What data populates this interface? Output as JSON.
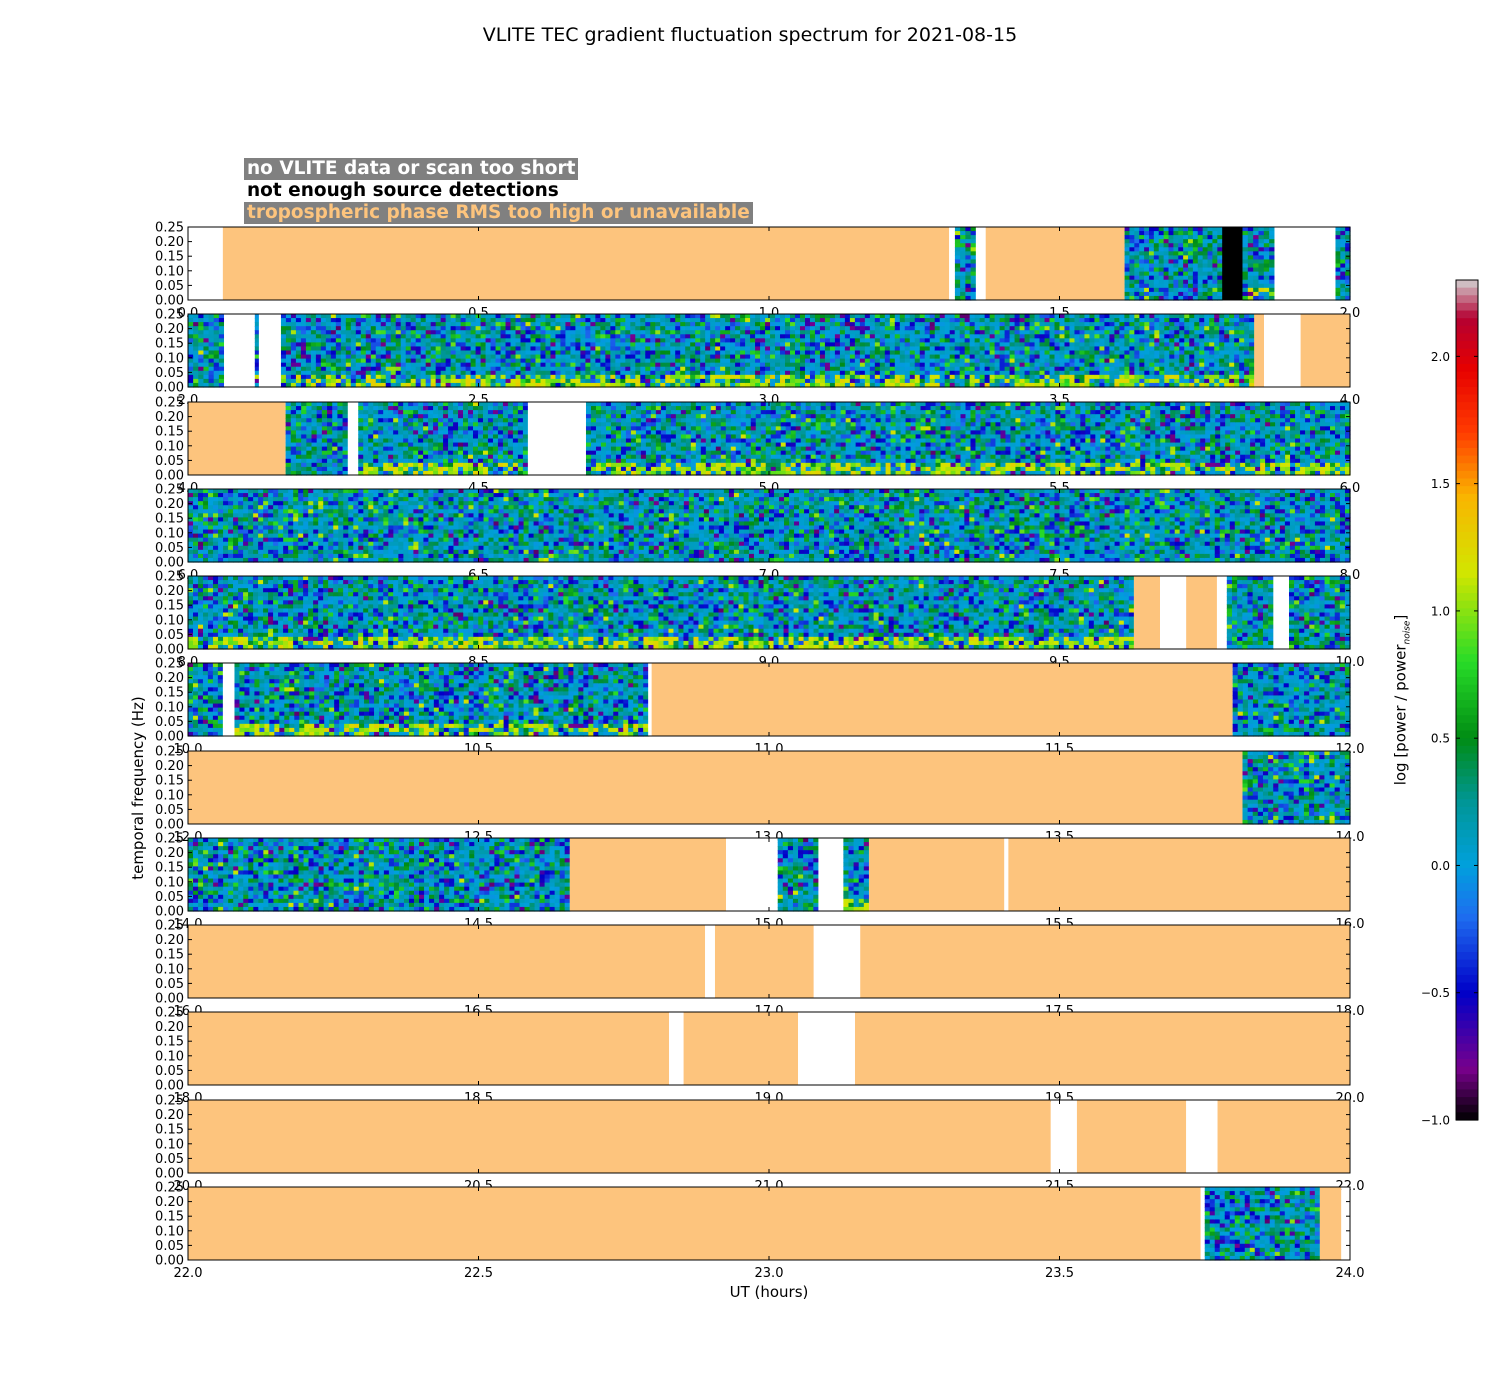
{
  "chart_data": {
    "type": "heatmap",
    "title": "VLITE TEC gradient fluctuation spectrum for 2021-08-15",
    "xlabel": "UT (hours)",
    "ylabel": "temporal frequency (Hz)",
    "ylim": [
      0,
      0.25
    ],
    "yticks": [
      "0.00",
      "0.05",
      "0.10",
      "0.15",
      "0.20",
      "0.25"
    ],
    "colorbar": {
      "label": "log [power / power",
      "label_sub": "noise",
      "label_end": "]",
      "range": [
        -1.0,
        2.3
      ],
      "ticks": [
        "−1.0",
        "−0.5",
        "0.0",
        "0.5",
        "1.0",
        "1.5",
        "2.0"
      ],
      "tick_values": [
        -1.0,
        -0.5,
        0.0,
        0.5,
        1.0,
        1.5,
        2.0
      ]
    },
    "legend": [
      {
        "text": "no VLITE data or scan too short",
        "color": "#ffffff"
      },
      {
        "text": "not enough source detections",
        "color": "#000000"
      },
      {
        "text": "tropospheric phase RMS too high or unavailable",
        "color": "#fdc47d"
      }
    ],
    "colors": {
      "no_data": "#ffffff",
      "few_detections": "#000000",
      "tropo_bad": "#fdc47d"
    },
    "panels": [
      {
        "range": [
          0,
          2
        ],
        "xticks": [
          "0.0",
          "0.5",
          "1.0",
          "1.5",
          "2.0"
        ],
        "segments": [
          [
            "white",
            0,
            0.06
          ],
          [
            "orange",
            0.06,
            1.31
          ],
          [
            "white",
            1.31,
            1.32
          ],
          [
            "data",
            1.32,
            1.356
          ],
          [
            "white",
            1.356,
            1.373
          ],
          [
            "orange",
            1.373,
            1.612
          ],
          [
            "data",
            1.612,
            1.78
          ],
          [
            "black",
            1.78,
            1.815
          ],
          [
            "data",
            1.815,
            1.87
          ],
          [
            "white",
            1.87,
            1.975
          ],
          [
            "data",
            1.975,
            2.0
          ]
        ]
      },
      {
        "range": [
          2,
          4
        ],
        "xticks": [
          "2.0",
          "2.5",
          "3.0",
          "3.5",
          "4.0"
        ],
        "segments": [
          [
            "data",
            2,
            2.062
          ],
          [
            "white",
            2.062,
            2.115
          ],
          [
            "data",
            2.115,
            2.122
          ],
          [
            "white",
            2.122,
            2.16
          ],
          [
            "data",
            2.16,
            3.835
          ],
          [
            "orange",
            3.835,
            3.852
          ],
          [
            "white",
            3.852,
            3.915
          ],
          [
            "orange",
            3.915,
            4.0
          ]
        ]
      },
      {
        "range": [
          4,
          6
        ],
        "xticks": [
          "4.0",
          "4.5",
          "5.0",
          "5.5",
          "6.0"
        ],
        "segments": [
          [
            "orange",
            4,
            4.168
          ],
          [
            "data",
            4.168,
            4.275
          ],
          [
            "white",
            4.275,
            4.293
          ],
          [
            "data",
            4.293,
            4.585
          ],
          [
            "white",
            4.585,
            4.685
          ],
          [
            "data",
            4.685,
            6.0
          ]
        ]
      },
      {
        "range": [
          6,
          8
        ],
        "xticks": [
          "6.0",
          "6.5",
          "7.0",
          "7.5",
          "8.0"
        ],
        "segments": [
          [
            "data",
            6,
            8
          ]
        ]
      },
      {
        "range": [
          8,
          10
        ],
        "xticks": [
          "8.0",
          "8.5",
          "9.0",
          "9.5",
          "10.0"
        ],
        "segments": [
          [
            "data",
            8,
            9.628
          ],
          [
            "orange",
            9.628,
            9.673
          ],
          [
            "white",
            9.673,
            9.718
          ],
          [
            "orange",
            9.718,
            9.771
          ],
          [
            "white",
            9.771,
            9.788
          ],
          [
            "data",
            9.788,
            9.868
          ],
          [
            "white",
            9.868,
            9.895
          ],
          [
            "data",
            9.895,
            10.0
          ]
        ]
      },
      {
        "range": [
          10,
          12
        ],
        "xticks": [
          "10.0",
          "10.5",
          "11.0",
          "11.5",
          "12.0"
        ],
        "segments": [
          [
            "data",
            10,
            10.06
          ],
          [
            "white",
            10.06,
            10.08
          ],
          [
            "data",
            10.08,
            10.792
          ],
          [
            "white",
            10.792,
            10.798
          ],
          [
            "orange",
            10.798,
            11.798
          ],
          [
            "data",
            11.798,
            12.0
          ]
        ]
      },
      {
        "range": [
          12,
          14
        ],
        "xticks": [
          "12.0",
          "12.5",
          "13.0",
          "13.5",
          "14.0"
        ],
        "segments": [
          [
            "orange",
            12,
            13.815
          ],
          [
            "data",
            13.815,
            14.0
          ]
        ]
      },
      {
        "range": [
          14,
          16
        ],
        "xticks": [
          "14.0",
          "14.5",
          "15.0",
          "15.5",
          "16.0"
        ],
        "segments": [
          [
            "data",
            14,
            14.657
          ],
          [
            "orange",
            14.657,
            14.926
          ],
          [
            "white",
            14.926,
            15.015
          ],
          [
            "data",
            15.015,
            15.085
          ],
          [
            "white",
            15.085,
            15.128
          ],
          [
            "data",
            15.128,
            15.172
          ],
          [
            "orange",
            15.172,
            15.405
          ],
          [
            "white",
            15.405,
            15.412
          ],
          [
            "orange",
            15.412,
            16.0
          ]
        ]
      },
      {
        "range": [
          16,
          18
        ],
        "xticks": [
          "16.0",
          "16.5",
          "17.0",
          "17.5",
          "18.0"
        ],
        "segments": [
          [
            "orange",
            16,
            16.89
          ],
          [
            "white",
            16.89,
            16.907
          ],
          [
            "orange",
            16.907,
            17.077
          ],
          [
            "white",
            17.077,
            17.157
          ],
          [
            "orange",
            17.157,
            18.0
          ]
        ]
      },
      {
        "range": [
          18,
          20
        ],
        "xticks": [
          "18.0",
          "18.5",
          "19.0",
          "19.5",
          "20.0"
        ],
        "segments": [
          [
            "orange",
            18,
            18.828
          ],
          [
            "white",
            18.828,
            18.853
          ],
          [
            "orange",
            18.853,
            19.05
          ],
          [
            "white",
            19.05,
            19.148
          ],
          [
            "orange",
            19.148,
            20.0
          ]
        ]
      },
      {
        "range": [
          20,
          22
        ],
        "xticks": [
          "20.0",
          "20.5",
          "21.0",
          "21.5",
          "22.0"
        ],
        "segments": [
          [
            "orange",
            20,
            21.485
          ],
          [
            "white",
            21.485,
            21.53
          ],
          [
            "orange",
            21.53,
            21.718
          ],
          [
            "white",
            21.718,
            21.772
          ],
          [
            "orange",
            21.772,
            22.0
          ]
        ]
      },
      {
        "range": [
          22,
          24
        ],
        "xticks": [
          "22.0",
          "22.5",
          "23.0",
          "23.5",
          "24.0"
        ],
        "segments": [
          [
            "orange",
            22,
            23.743
          ],
          [
            "white",
            23.743,
            23.75
          ],
          [
            "data",
            23.75,
            23.948
          ],
          [
            "orange",
            23.948,
            23.985
          ],
          [
            "white",
            23.985,
            24.0
          ]
        ]
      }
    ]
  }
}
